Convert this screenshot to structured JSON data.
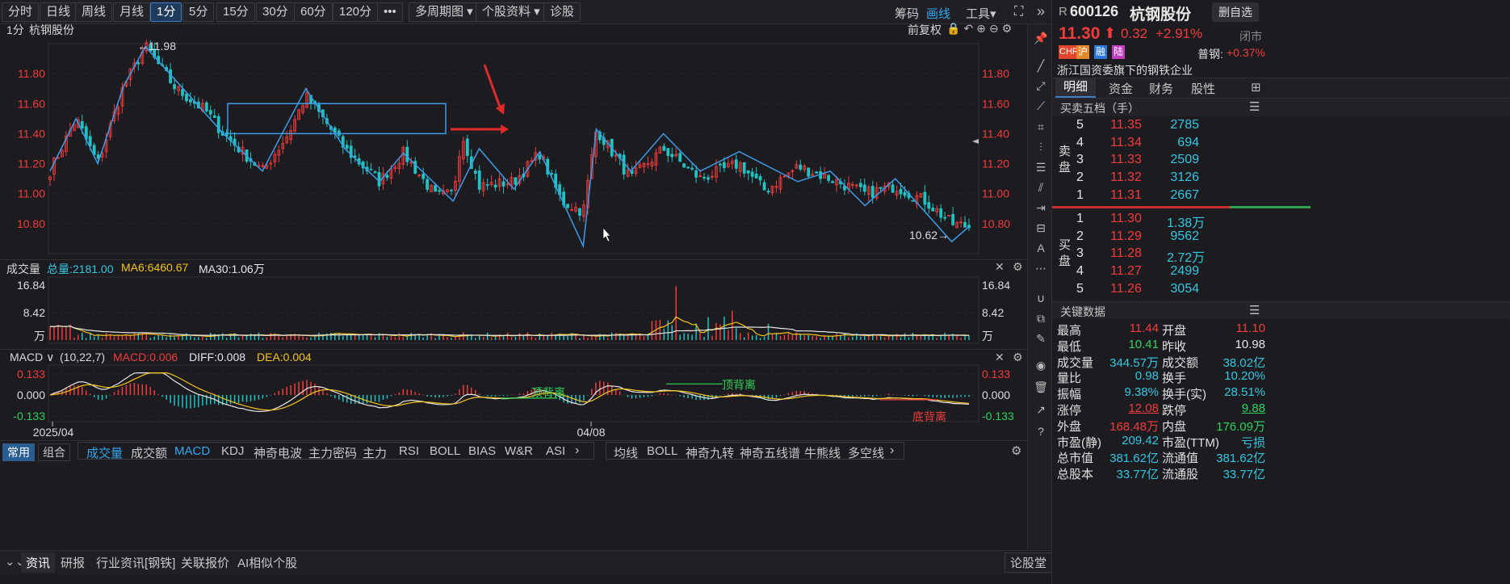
{
  "toolbar": {
    "items": [
      "分时",
      "日线",
      "周线",
      "月线",
      "1分",
      "5分",
      "15分",
      "30分",
      "60分",
      "120分",
      "•••",
      "多周期图 ▾",
      "个股资料 ▾",
      "诊股"
    ],
    "active": "1分",
    "right": [
      "筹码",
      "画线",
      "工具▾"
    ]
  },
  "chart": {
    "period": "1分",
    "name": "杭钢股份",
    "fq": "前复权",
    "price_labels": [
      "11.80",
      "11.60",
      "11.40",
      "11.20",
      "11.00",
      "10.80"
    ],
    "high_note": "←11.98",
    "low_note": "10.62→"
  },
  "volume": {
    "title": "成交量",
    "total": "总量:2181.00",
    "ma6": "MA6:6460.67",
    "ma30": "MA30:1.06万",
    "ticks": [
      "16.84",
      "8.42",
      "万"
    ]
  },
  "macd": {
    "title": "MACD ∨",
    "params": "(10,22,7)",
    "macd": "MACD:0.006",
    "diff": "DIFF:0.008",
    "dea": "DEA:0.004",
    "ticks": [
      "0.133",
      "0.000",
      "-0.133"
    ],
    "dates": [
      "2025/04",
      "04/08"
    ],
    "notes": [
      "顶背离",
      "顶背离",
      "底背离"
    ]
  },
  "indicator_tabs": {
    "groups": [
      "常用",
      "组合"
    ],
    "items": [
      "成交量",
      "成交额",
      "MACD",
      "KDJ",
      "神奇电波",
      "主力密码",
      "主力",
      "RSI",
      "BOLL",
      "BIAS",
      "W&R",
      "ASI"
    ],
    "active": "MACD",
    "items2": [
      "均线",
      "BOLL",
      "神奇九转",
      "神奇五线谱",
      "牛熊线",
      "多空线"
    ]
  },
  "news_tabs": {
    "items": [
      "资讯",
      "研报",
      "行业资讯[钢铁]",
      "关联报价",
      "AI相似个股"
    ],
    "right": "论股堂"
  },
  "stock": {
    "prefix": "R",
    "code": "600126",
    "name": "杭钢股份",
    "price": "11.30",
    "change": "0.32",
    "pct": "+2.91%",
    "status": "闭市",
    "badges": [
      "CHR",
      "沪",
      "融",
      "陆"
    ],
    "index_name": "普钢:",
    "index_pct": "+0.37%",
    "desc": "浙江国资委旗下的钢铁企业",
    "watch_btn": "删自选"
  },
  "detail_tabs": {
    "items": [
      "明细",
      "资金",
      "财务",
      "股性"
    ],
    "active": "明细"
  },
  "orderbook": {
    "title": "买卖五档（手）",
    "sell_label": "卖盘",
    "buy_label": "买盘",
    "sell": [
      [
        "5",
        "11.35",
        "2785"
      ],
      [
        "4",
        "11.34",
        "694"
      ],
      [
        "3",
        "11.33",
        "2509"
      ],
      [
        "2",
        "11.32",
        "3126"
      ],
      [
        "1",
        "11.31",
        "2667"
      ]
    ],
    "buy": [
      [
        "1",
        "11.30",
        "1.38万"
      ],
      [
        "2",
        "11.29",
        "9562"
      ],
      [
        "3",
        "11.28",
        "2.72万"
      ],
      [
        "4",
        "11.27",
        "2499"
      ],
      [
        "5",
        "11.26",
        "3054"
      ]
    ]
  },
  "keydata": {
    "title": "关键数据",
    "rows": [
      [
        "最高",
        "11.44",
        "开盘",
        "11.10"
      ],
      [
        "最低",
        "10.41",
        "昨收",
        "10.98"
      ],
      [
        "成交量",
        "344.57万",
        "成交额",
        "38.02亿"
      ],
      [
        "量比",
        "0.98",
        "换手",
        "10.20%"
      ],
      [
        "振幅",
        "9.38%",
        "换手(实)",
        "28.51%"
      ],
      [
        "涨停",
        "12.08",
        "跌停",
        "9.88"
      ],
      [
        "外盘",
        "168.48万",
        "内盘",
        "176.09万"
      ],
      [
        "市盈(静)",
        "209.42",
        "市盈(TTM)",
        "亏损"
      ],
      [
        "总市值",
        "381.62亿",
        "流通值",
        "381.62亿"
      ],
      [
        "总股本",
        "33.77亿",
        "流通股",
        "33.77亿"
      ]
    ]
  },
  "colors": {
    "up": "#f13c3c",
    "down": "#2fd15a",
    "accent": "#34c6e0",
    "line": "#3d9be8",
    "ma6": "#f5c31c",
    "ma30": "#e6e6e6"
  }
}
